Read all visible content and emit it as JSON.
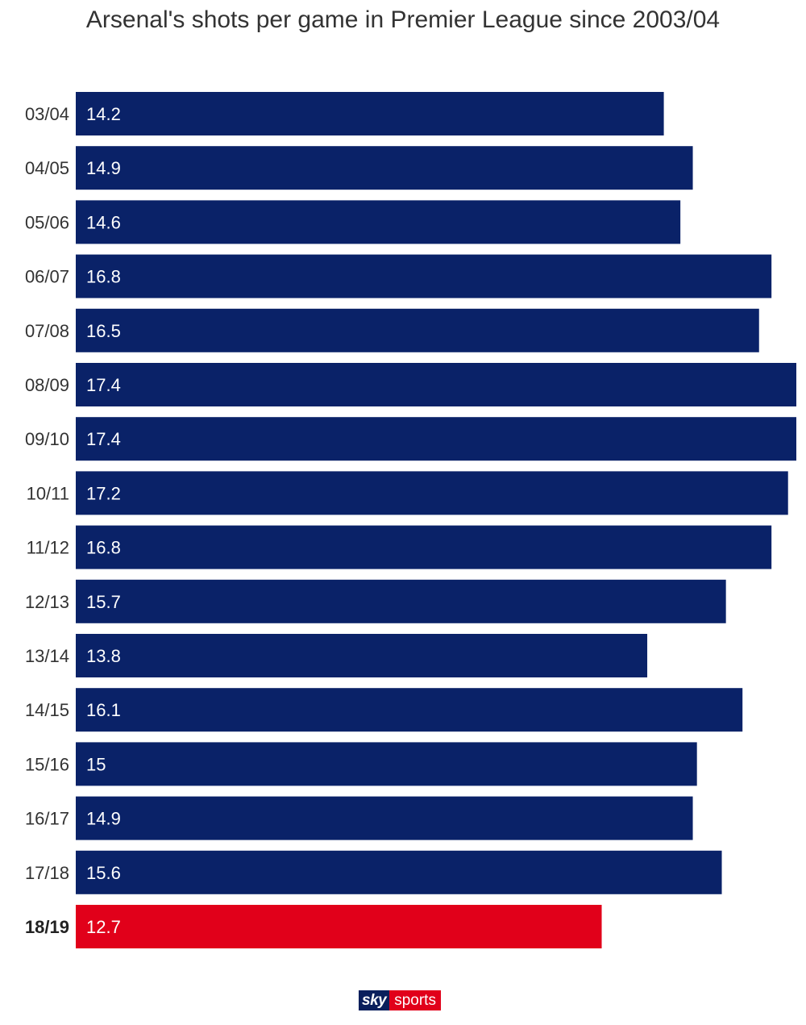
{
  "chart_data": {
    "type": "bar",
    "orientation": "horizontal",
    "title": "Arsenal's shots per game in Premier League since 2003/04",
    "categories": [
      "03/04",
      "04/05",
      "05/06",
      "06/07",
      "07/08",
      "08/09",
      "09/10",
      "10/11",
      "11/12",
      "12/13",
      "13/14",
      "14/15",
      "15/16",
      "16/17",
      "17/18",
      "18/19"
    ],
    "values": [
      14.2,
      14.9,
      14.6,
      16.8,
      16.5,
      17.4,
      17.4,
      17.2,
      16.8,
      15.7,
      13.8,
      16.1,
      15,
      14.9,
      15.6,
      12.7
    ],
    "value_labels": [
      "14.2",
      "14.9",
      "14.6",
      "16.8",
      "16.5",
      "17.4",
      "17.4",
      "17.2",
      "16.8",
      "15.7",
      "13.8",
      "16.1",
      "15",
      "14.9",
      "15.6",
      "12.7"
    ],
    "highlight_index": 15,
    "colors": {
      "bar": "#0a2268",
      "highlight": "#e1001a"
    },
    "xlim": [
      0,
      17.4
    ],
    "grid": false,
    "legend": "none"
  },
  "branding": {
    "logo_sky": "sky",
    "logo_sports": "sports"
  }
}
